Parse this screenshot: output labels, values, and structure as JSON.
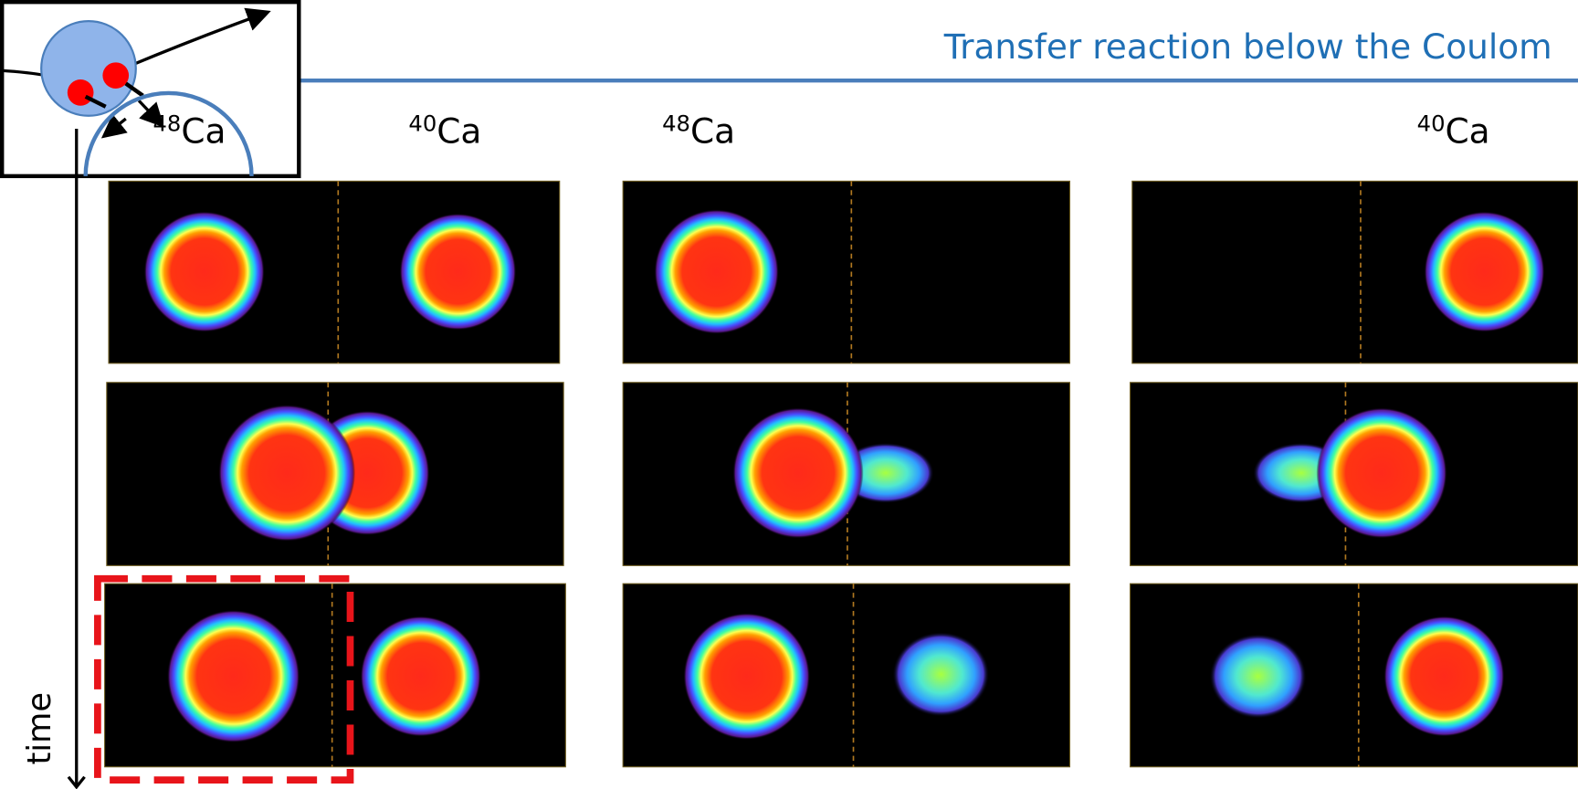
{
  "title": "Transfer reaction below the Coulom",
  "column_labels": [
    {
      "mass": "48",
      "symbol": "Ca"
    },
    {
      "mass": "40",
      "symbol": "Ca"
    },
    {
      "mass": "48",
      "symbol": "Ca"
    },
    {
      "mass": "40",
      "symbol": "Ca"
    }
  ],
  "axis_label": "time"
}
